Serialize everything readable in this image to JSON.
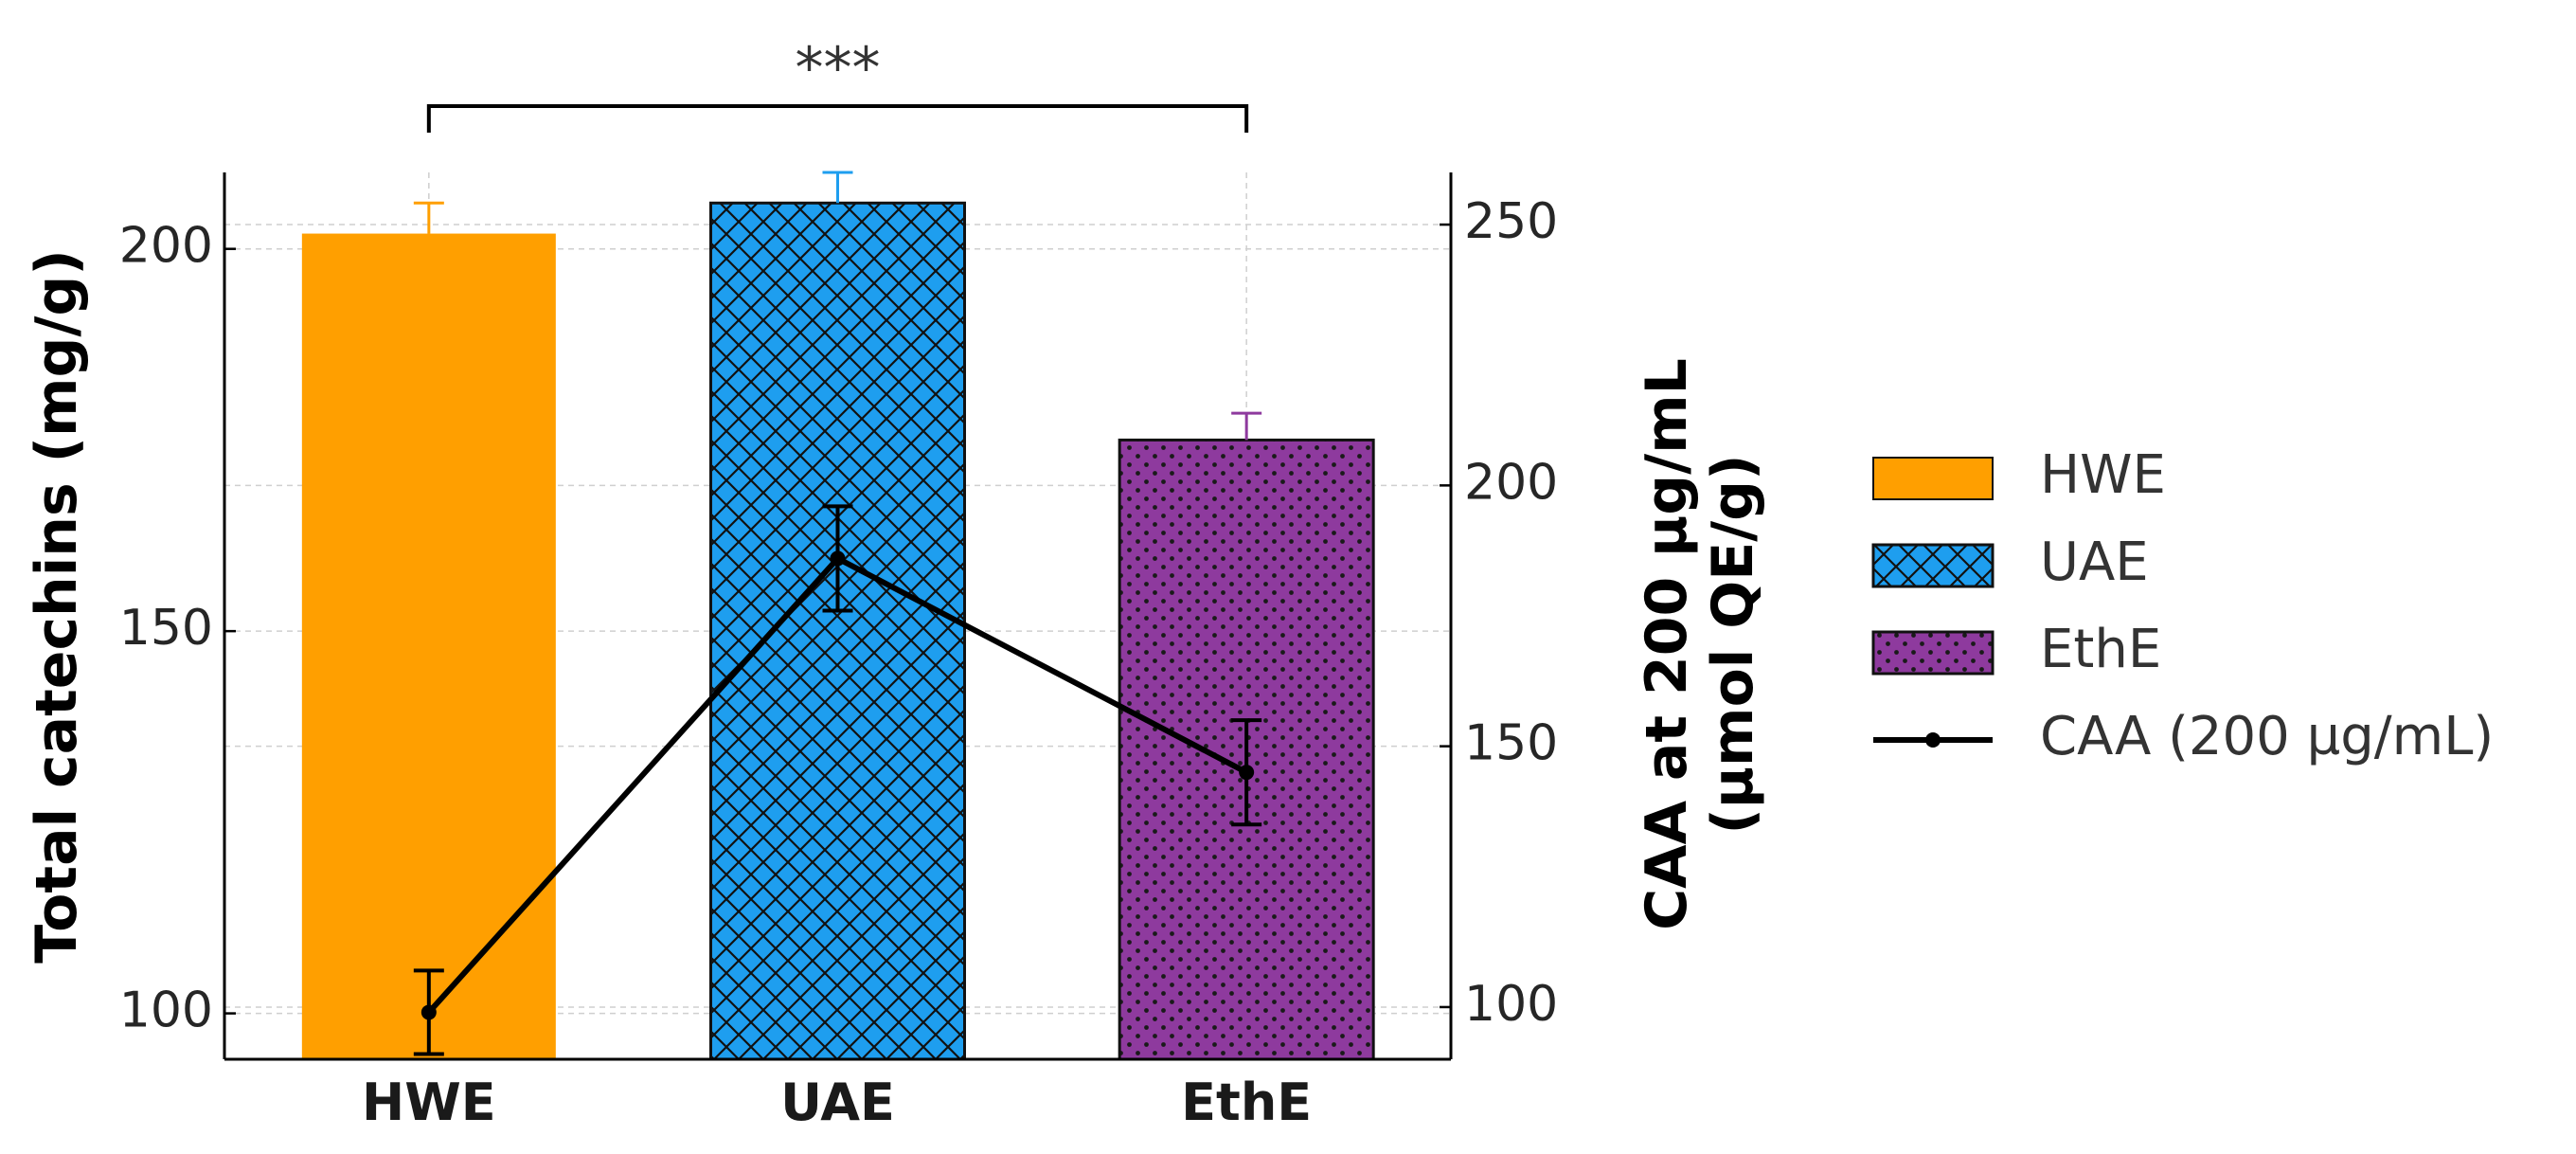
{
  "chart_data": {
    "type": "bar",
    "categories": [
      "HWE",
      "UAE",
      "EthE"
    ],
    "bar_series": {
      "values": [
        202,
        206,
        175
      ],
      "errors": [
        4,
        4,
        3.5
      ],
      "colors": [
        "#FF9F00",
        "#1E9EEF",
        "#8E3A9E"
      ],
      "hatches": [
        "none",
        "crosshatch",
        "dots"
      ]
    },
    "line_series": {
      "name": "CAA (200 µg/mL)",
      "values": [
        99,
        186,
        145
      ],
      "errors": [
        8,
        10,
        10
      ],
      "color": "#000000"
    },
    "ylabel": "Total catechins (mg/g)",
    "y2label_line1": "CAA at 200 µg/mL",
    "y2label_line2": "(µmol QE/g)",
    "ylim": [
      94,
      210
    ],
    "y2lim": [
      90,
      260
    ],
    "yticks": [
      100,
      150,
      200
    ],
    "y2ticks": [
      100,
      150,
      200,
      250
    ],
    "grid": true,
    "legend": {
      "position": "right",
      "entries": [
        "HWE",
        "UAE",
        "EthE",
        "CAA (200 µg/mL)"
      ]
    },
    "significance": {
      "label": "***",
      "from": "HWE",
      "to": "EthE"
    }
  }
}
